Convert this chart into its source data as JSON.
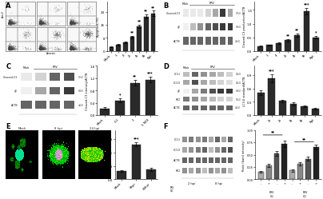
{
  "panel_labels": [
    "A",
    "B",
    "C",
    "D",
    "E",
    "F"
  ],
  "panel_label_fontsize": 6,
  "background_color": "#ffffff",
  "panelA_bar": {
    "categories": [
      "Mock",
      "1",
      "4",
      "2t",
      "4t",
      "8t",
      "Rpt"
    ],
    "values": [
      2.5,
      3.8,
      5.5,
      8.5,
      15.0,
      21.0,
      23.0
    ],
    "errors": [
      0.3,
      0.4,
      0.5,
      0.6,
      1.0,
      1.2,
      1.5
    ],
    "ylabel": "Apoptosis (%)",
    "bar_color": "#2a2a2a",
    "sig_labels": [
      "",
      "",
      "",
      "**",
      "**",
      "**",
      "**"
    ],
    "ylim": [
      0,
      30
    ]
  },
  "panelB_bar": {
    "categories": [
      "Mock",
      "1",
      "4",
      "2t",
      "4t",
      "8t",
      "Rpt"
    ],
    "values": [
      0.18,
      0.22,
      0.28,
      0.4,
      0.58,
      1.45,
      0.5
    ],
    "errors": [
      0.02,
      0.02,
      0.03,
      0.04,
      0.06,
      0.12,
      0.05
    ],
    "ylabel": "Cleaved-C3 production/ACTB",
    "bar_color": "#2a2a2a",
    "sig_labels": [
      "",
      "",
      "",
      "**",
      "**",
      "***",
      "*"
    ],
    "ylim": [
      0,
      1.8
    ]
  },
  "panelC_bar": {
    "categories": [
      "Mock",
      "0.1",
      "1",
      "5 MOI"
    ],
    "values": [
      0.22,
      0.48,
      1.05,
      1.15
    ],
    "errors": [
      0.04,
      0.07,
      0.09,
      0.09
    ],
    "ylabel": "Cleaved-C3 intensity/ACTB",
    "bar_color": "#2a2a2a",
    "sig_labels": [
      "",
      "*",
      "**",
      "***"
    ],
    "ylim": [
      0,
      1.6
    ]
  },
  "panelD_bar": {
    "categories": [
      "Mock",
      "1t",
      "2t",
      "4t",
      "8t",
      "Rpt"
    ],
    "values": [
      0.5,
      0.82,
      0.32,
      0.25,
      0.2,
      0.15
    ],
    "errors": [
      0.05,
      0.09,
      0.03,
      0.03,
      0.02,
      0.02
    ],
    "ylabel": "LC3-II standard/ACTB",
    "bar_color": "#2a2a2a",
    "sig_labels": [
      "",
      "***",
      "",
      "",
      "",
      ""
    ],
    "ylim": [
      0,
      1.1
    ]
  },
  "panelE_bar": {
    "categories": [
      "Mock",
      "8hpi",
      "24hpi"
    ],
    "values": [
      0.18,
      0.78,
      0.22
    ],
    "errors": [
      0.02,
      0.05,
      0.03
    ],
    "ylabel": "GFP-LC3 puncta/cell",
    "bar_color": "#2a2a2a",
    "sig_labels": [
      "",
      "***",
      ""
    ],
    "ylim": [
      0,
      1.1
    ]
  },
  "panelF_bar": {
    "x_labels": [
      "-/-",
      "+/-",
      "-/+",
      "+/+",
      "-/-",
      "+/-",
      "-/+",
      "+/+"
    ],
    "values": [
      0.15,
      0.28,
      0.52,
      0.72,
      0.18,
      0.32,
      0.42,
      0.65
    ],
    "errors": [
      0.02,
      0.03,
      0.05,
      0.06,
      0.02,
      0.03,
      0.04,
      0.05
    ],
    "ylabel": "Ratio (band intensity)",
    "bar_colors_2hpi": "#888888",
    "bar_colors_8hpi": "#333333",
    "ylim": [
      0,
      1.0
    ],
    "group1_sig": "**",
    "group2_sig": "**"
  },
  "flowcyt_scatter_n_main": 1500,
  "flowcyt_scatter_n_upper": 80,
  "wb_B_labels": [
    "Cleaved-C3",
    "gE",
    "ACTB"
  ],
  "wb_B_mw": [
    "17kD",
    "68kD",
    "42kD"
  ],
  "wb_B_nlanes": 7,
  "wb_C_labels": [
    "Cleaved-C3",
    "gE",
    "ACTB"
  ],
  "wb_C_mw": [
    "17kD",
    "68kD",
    "42kD"
  ],
  "wb_C_nlanes": 4,
  "wb_D_labels": [
    "LC3-I",
    "LC3-II",
    "gE",
    "PK2",
    "ACTB"
  ],
  "wb_D_mw": [
    "16kD",
    "14kD",
    "68kD",
    "15kD",
    "42kD"
  ],
  "wb_D_nlanes": 6,
  "wb_F_labels": [
    "LC3-I",
    "LC3-II",
    "ACTB",
    "PK2"
  ],
  "wb_F_nlanes": 8,
  "fluor_bg": "#050510",
  "fluor_green": "#00cc00",
  "fluor_yellow": "#dddd00",
  "fluor_blue": "#2244cc"
}
